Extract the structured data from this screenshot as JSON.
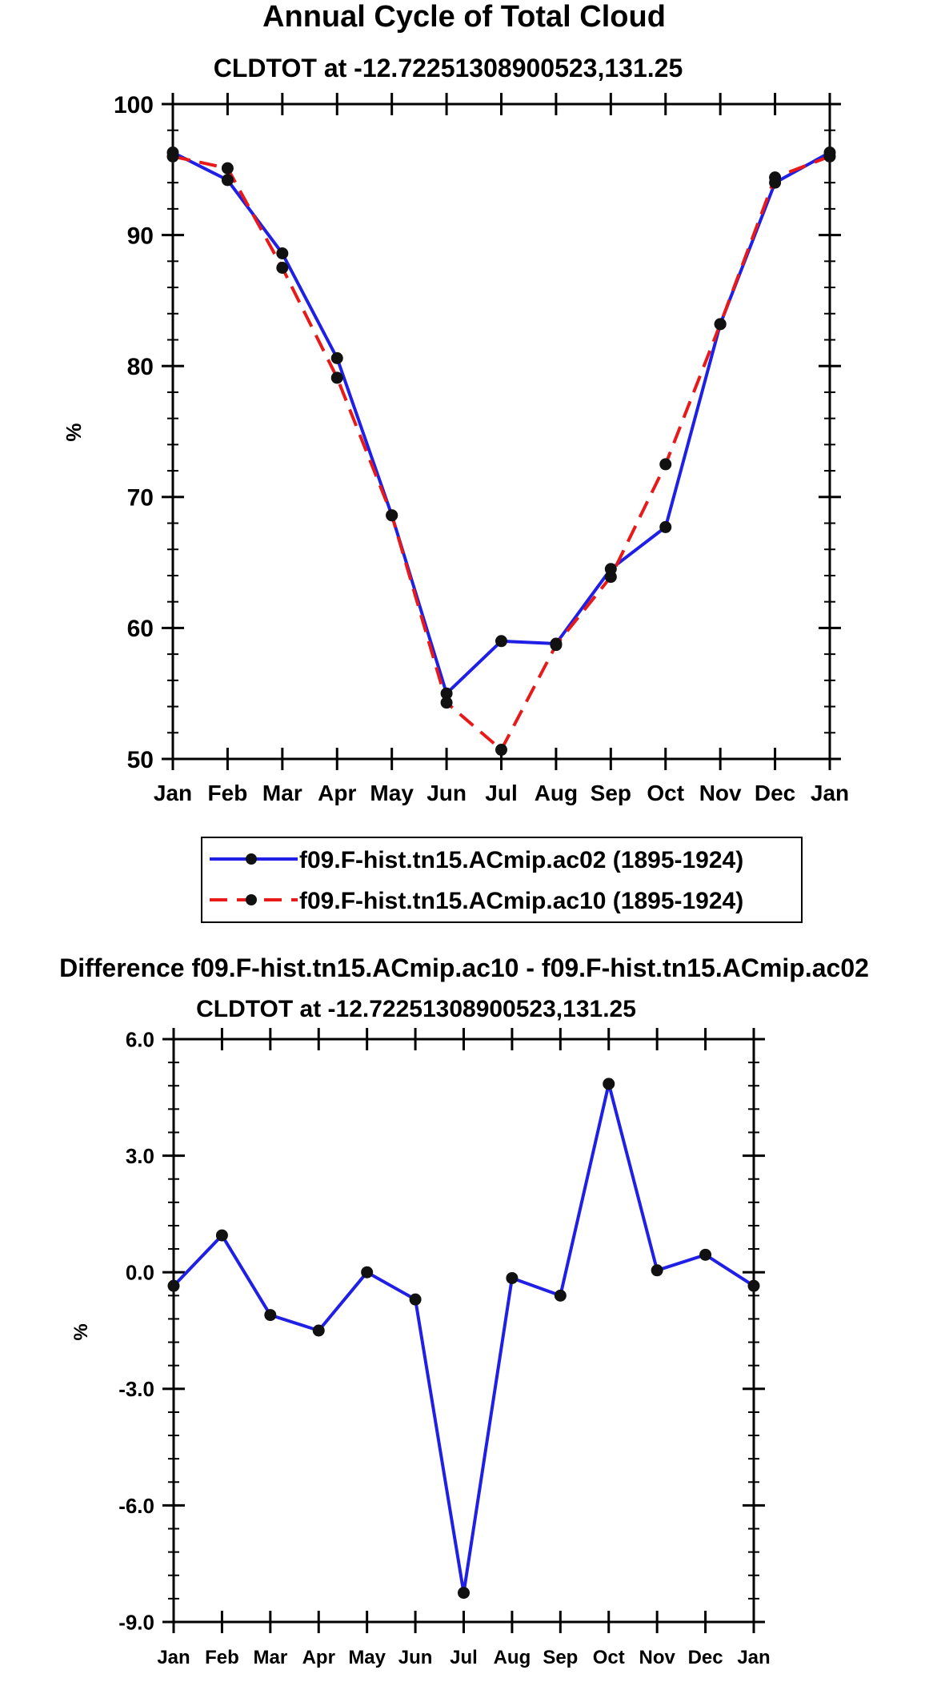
{
  "chart_data": [
    {
      "type": "line",
      "title": "Annual Cycle of Total Cloud",
      "subtitle": "CLDTOT at -12.72251308900523,131.25",
      "xlabel": "",
      "ylabel": "%",
      "categories": [
        "Jan",
        "Feb",
        "Mar",
        "Apr",
        "May",
        "Jun",
        "Jul",
        "Aug",
        "Sep",
        "Oct",
        "Nov",
        "Dec",
        "Jan"
      ],
      "ylim": [
        50,
        100
      ],
      "yticks": [
        "50",
        "60",
        "70",
        "80",
        "90",
        "100"
      ],
      "legend_position": "below",
      "series": [
        {
          "name": "f09.F-hist.tn15.ACmip.ac02 (1895-1924)",
          "color": "#1f1fe6",
          "style": "solid",
          "values": [
            96.3,
            94.2,
            88.6,
            80.6,
            68.6,
            55.0,
            59.0,
            58.8,
            64.5,
            67.7,
            83.2,
            94.0,
            96.3
          ]
        },
        {
          "name": "f09.F-hist.tn15.ACmip.ac10 (1895-1924)",
          "color": "#e81919",
          "style": "dashed",
          "values": [
            96.0,
            95.1,
            87.5,
            79.1,
            68.6,
            54.3,
            50.7,
            58.7,
            63.9,
            72.5,
            83.2,
            94.4,
            96.0
          ]
        }
      ]
    },
    {
      "type": "line",
      "title": "Difference f09.F-hist.tn15.ACmip.ac10 - f09.F-hist.tn15.ACmip.ac02",
      "subtitle": "CLDTOT at -12.72251308900523,131.25",
      "xlabel": "",
      "ylabel": "%",
      "categories": [
        "Jan",
        "Feb",
        "Mar",
        "Apr",
        "May",
        "Jun",
        "Jul",
        "Aug",
        "Sep",
        "Oct",
        "Nov",
        "Dec",
        "Jan"
      ],
      "ylim": [
        -9,
        6
      ],
      "yticks": [
        "-9.0",
        "-6.0",
        "-3.0",
        "0.0",
        "3.0",
        "6.0"
      ],
      "series": [
        {
          "name": "difference",
          "color": "#1f1fe6",
          "style": "solid",
          "values": [
            -0.35,
            0.95,
            -1.1,
            -1.5,
            0.0,
            -0.7,
            -8.25,
            -0.15,
            -0.6,
            4.85,
            0.05,
            0.45,
            -0.35
          ]
        }
      ]
    }
  ]
}
